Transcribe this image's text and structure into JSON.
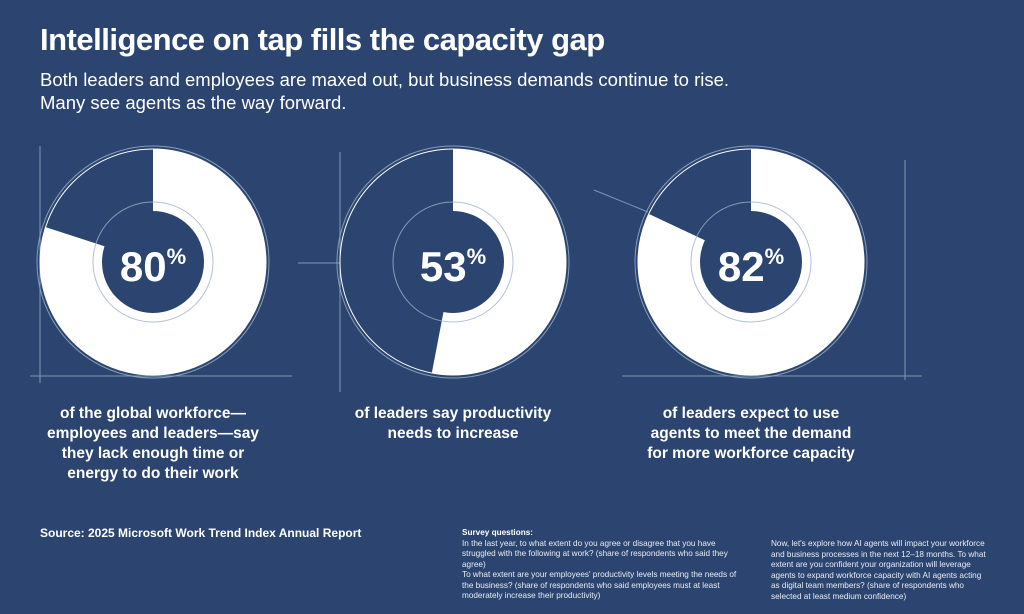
{
  "title": "Intelligence on tap fills the capacity gap",
  "subtitle_lines": [
    "Both leaders and employees are maxed out, but business demands continue to rise.",
    "Many see agents as the way forward."
  ],
  "chart_data": [
    {
      "type": "pie",
      "variant": "donut",
      "value": 80,
      "label": "80",
      "unit": "%",
      "caption_lines": [
        "of the global workforce—",
        "employees and leaders—say",
        "they lack enough time or",
        "energy to do their work"
      ]
    },
    {
      "type": "pie",
      "variant": "donut",
      "value": 53,
      "label": "53",
      "unit": "%",
      "caption_lines": [
        "of leaders say productivity",
        "needs to increase"
      ]
    },
    {
      "type": "pie",
      "variant": "donut",
      "value": 82,
      "label": "82",
      "unit": "%",
      "caption_lines": [
        "of leaders expect to use",
        "agents to meet the demand",
        "for more workforce capacity"
      ]
    }
  ],
  "colors": {
    "background": "#2b4570",
    "fill": "#ffffff",
    "center": "#2b4570",
    "lines": "#9fb2cc"
  },
  "source": "Source: 2025 Microsoft Work Trend Index Annual Report",
  "survey": {
    "heading": "Survey questions:",
    "q1": "In the last year, to what extent do you agree or disagree that you have struggled with the following at work? (share of respondents who said they agree)",
    "q2": "To what extent are your employees' productivity levels meeting the needs of the business? (share of respondents who said employees must at least moderately increase their productivity)",
    "q3": "Now, let's explore how AI agents will impact your workforce and business processes in the next 12–18 months. To what extent are you confident your organization will leverage agents to expand workforce capacity with AI agents acting as digital team members? (share of respondents who selected at least medium confidence)"
  }
}
